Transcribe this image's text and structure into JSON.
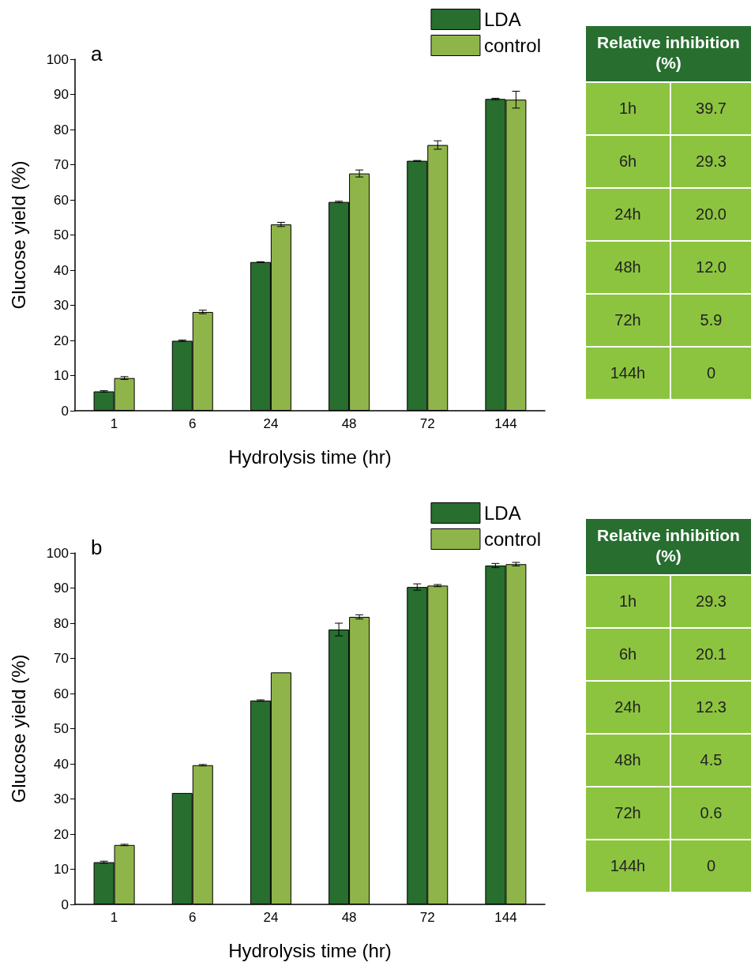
{
  "chart_data": [
    {
      "type": "bar",
      "annotations": [
        "a"
      ],
      "xlabel": "Hydrolysis time (hr)",
      "ylabel": "Glucose yield (%)",
      "categories": [
        "1",
        "6",
        "24",
        "48",
        "72",
        "144"
      ],
      "series": [
        {
          "name": "LDA",
          "color": "#276e2f",
          "values": [
            5.5,
            19.9,
            42.3,
            59.4,
            71.1,
            88.7
          ],
          "errors": [
            0.2,
            0.2,
            0.1,
            0.2,
            0.1,
            0.2
          ]
        },
        {
          "name": "control",
          "color": "#8fb54a",
          "values": [
            9.3,
            28.1,
            53.0,
            67.5,
            75.6,
            88.5
          ],
          "errors": [
            0.4,
            0.5,
            0.6,
            1.0,
            1.2,
            2.4
          ]
        }
      ],
      "ylim": [
        0,
        100
      ],
      "yticks": [
        0,
        10,
        20,
        30,
        40,
        50,
        60,
        70,
        80,
        90,
        100
      ],
      "legend": "top right",
      "grid": false
    },
    {
      "type": "other",
      "title": "Relative inhibition (%)",
      "categories": [
        "1h",
        "6h",
        "24h",
        "48h",
        "72h",
        "144h"
      ],
      "value_labels": [
        "39.7",
        "29.3",
        "20.0",
        "12.0",
        "5.9",
        "0"
      ]
    },
    {
      "type": "bar",
      "annotations": [
        "b"
      ],
      "xlabel": "Hydrolysis time (hr)",
      "ylabel": "Glucose yield (%)",
      "categories": [
        "1",
        "6",
        "24",
        "48",
        "72",
        "144"
      ],
      "series": [
        {
          "name": "LDA",
          "color": "#276e2f",
          "values": [
            12.0,
            31.7,
            58.0,
            78.2,
            90.3,
            96.4
          ],
          "errors": [
            0.3,
            null,
            0.2,
            1.8,
            0.9,
            0.6
          ]
        },
        {
          "name": "control",
          "color": "#8fb54a",
          "values": [
            16.9,
            39.6,
            66.0,
            81.8,
            90.7,
            96.8
          ],
          "errors": [
            0.2,
            0.2,
            null,
            0.6,
            0.3,
            0.5
          ]
        }
      ],
      "ylim": [
        0,
        100
      ],
      "yticks": [
        0,
        10,
        20,
        30,
        40,
        50,
        60,
        70,
        80,
        90,
        100
      ],
      "legend": "top right",
      "grid": false
    },
    {
      "type": "other",
      "title": "Relative inhibition (%)",
      "categories": [
        "1h",
        "6h",
        "24h",
        "48h",
        "72h",
        "144h"
      ],
      "value_labels": [
        "29.3",
        "20.1",
        "12.3",
        "4.5",
        "0.6",
        "0"
      ]
    }
  ]
}
